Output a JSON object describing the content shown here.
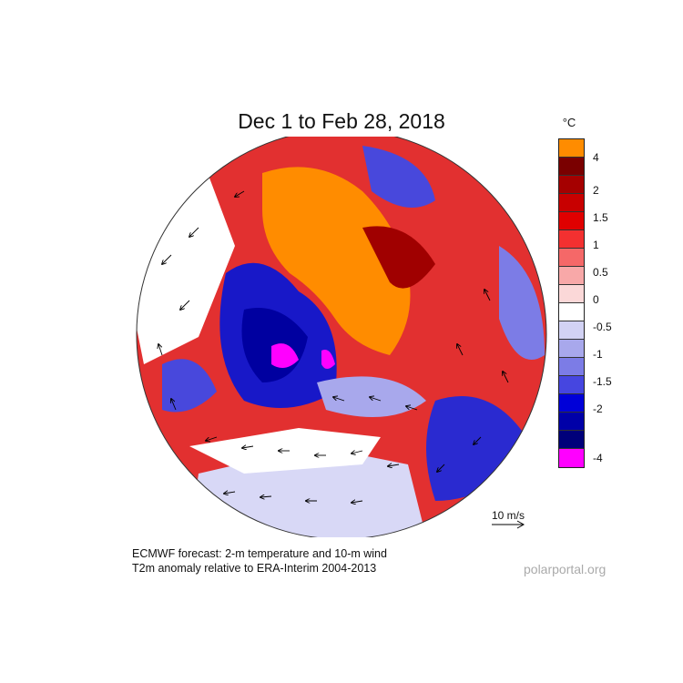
{
  "title": "Dec 1 to Feb 28, 2018",
  "legend": {
    "unit": "°C",
    "colors": [
      "#ff8c00",
      "#7a0000",
      "#a50000",
      "#c80000",
      "#e00000",
      "#f33030",
      "#f56868",
      "#f8a8a8",
      "#fbd8d8",
      "#ffffff",
      "#d2d2f4",
      "#a8a8ec",
      "#7c7ce6",
      "#4646e0",
      "#0000d8",
      "#0000a8",
      "#00007a",
      "#ff00ff"
    ],
    "labels": [
      "4",
      "2",
      "1.5",
      "1",
      "0.5",
      "0",
      "-0.5",
      "-1",
      "-1.5",
      "-2",
      "-4"
    ]
  },
  "wind_reference": {
    "label": "10 m/s"
  },
  "caption": {
    "line1": "ECMWF forecast: 2-m temperature and 10-m wind",
    "line2": "T2m anomaly relative to ERA-Interim 2004-2013"
  },
  "credit": "polarportal.org"
}
